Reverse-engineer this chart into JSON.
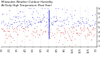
{
  "title_line1": "Milwaukee Weather Outdoor Humidity",
  "title_line2": "At Daily High Temperature (Past Year)",
  "title_fontsize": 2.8,
  "bg_color": "#ffffff",
  "plot_bg_color": "#ffffff",
  "y_min": 1,
  "y_max": 9,
  "y_ticks": [
    1,
    2,
    3,
    4,
    5,
    6,
    7,
    8,
    9
  ],
  "grid_color": "#bbbbbb",
  "num_points": 365,
  "blue_color": "#1111cc",
  "red_color": "#cc1111",
  "tick_fontsize": 2.5,
  "seed": 42,
  "month_days": [
    0,
    31,
    59,
    90,
    120,
    151,
    181,
    212,
    243,
    273,
    304,
    334,
    365
  ],
  "month_labels": [
    "1/1",
    "2/1",
    "3/1",
    "4/1",
    "5/1",
    "6/1",
    "7/1",
    "8/1",
    "9/1",
    "10/1",
    "11/1",
    "12/1",
    "1/1"
  ]
}
